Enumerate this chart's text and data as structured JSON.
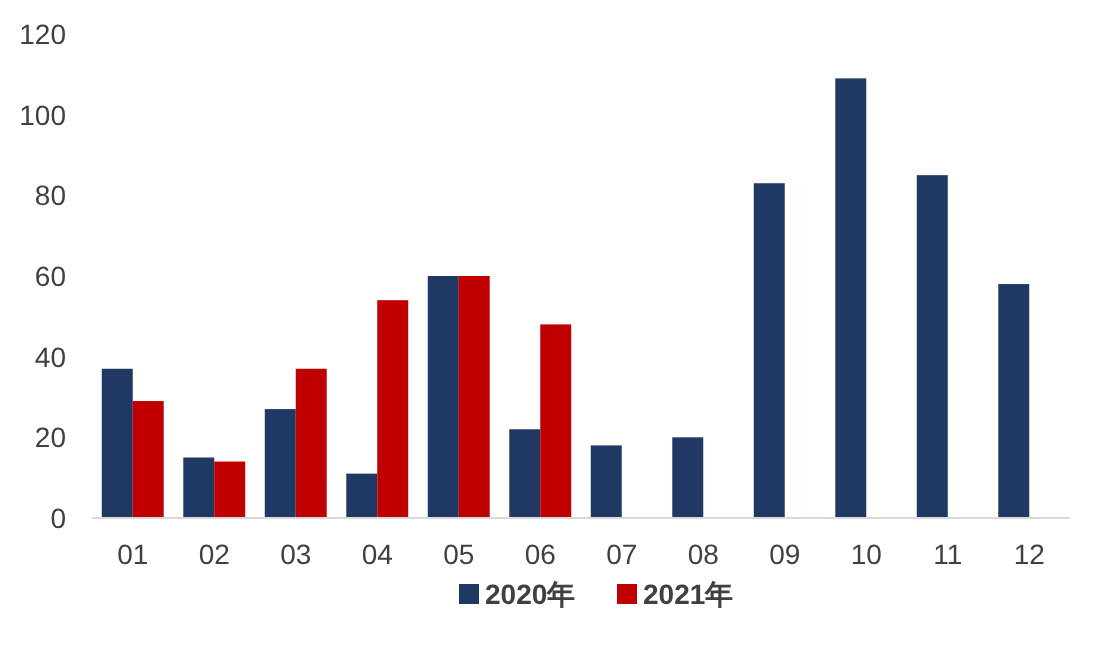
{
  "chart_data": {
    "type": "bar",
    "categories": [
      "01",
      "02",
      "03",
      "04",
      "05",
      "06",
      "07",
      "08",
      "09",
      "10",
      "11",
      "12"
    ],
    "series": [
      {
        "name": "2020年",
        "color": "#1f3864",
        "values": [
          37,
          15,
          27,
          11,
          60,
          22,
          18,
          20,
          83,
          109,
          85,
          58
        ]
      },
      {
        "name": "2021年",
        "color": "#c00000",
        "values": [
          29,
          14,
          37,
          54,
          60,
          48,
          null,
          null,
          null,
          null,
          null,
          null
        ]
      }
    ],
    "ylim": [
      0,
      120
    ],
    "yticks": [
      0,
      20,
      40,
      60,
      80,
      100,
      120
    ],
    "legend": "bottom",
    "grid": false
  }
}
